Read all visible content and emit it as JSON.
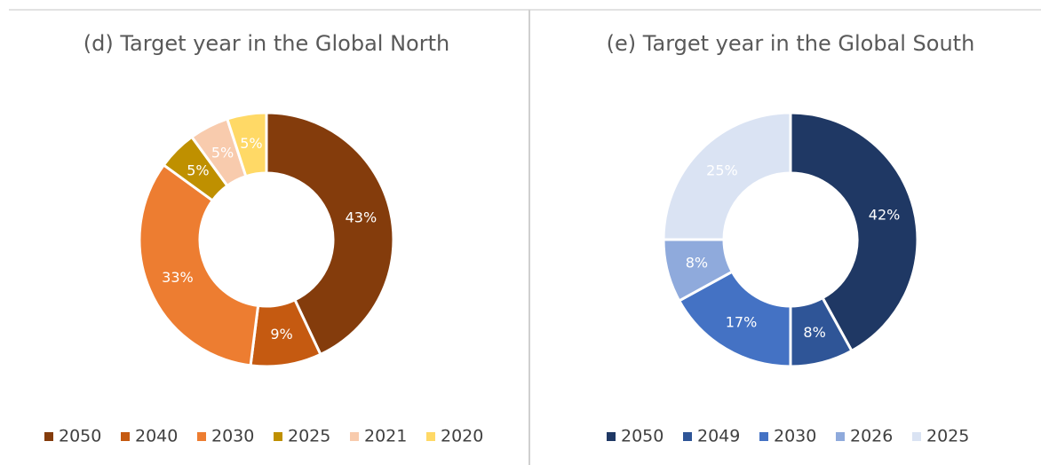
{
  "chart_data": [
    {
      "type": "donut",
      "title": "(d) Target year in the Global North",
      "categories": [
        "2050",
        "2040",
        "2030",
        "2025",
        "2021",
        "2020"
      ],
      "values": [
        43,
        9,
        33,
        5,
        5,
        5
      ],
      "value_labels": [
        "43%",
        "9%",
        "33%",
        "5%",
        "5%",
        "5%"
      ],
      "colors": [
        "#843C0C",
        "#C55A11",
        "#ED7D31",
        "#BF9000",
        "#F8CBAD",
        "#FFD966"
      ],
      "legend": "bottom"
    },
    {
      "type": "donut",
      "title": "(e) Target year in the Global South",
      "categories": [
        "2050",
        "2049",
        "2030",
        "2026",
        "2025"
      ],
      "values": [
        42,
        8,
        17,
        8,
        25
      ],
      "value_labels": [
        "42%",
        "8%",
        "17%",
        "8%",
        "25%"
      ],
      "colors": [
        "#1F3864",
        "#2F5597",
        "#4472C4",
        "#8FAADC",
        "#DAE3F3"
      ],
      "legend": "bottom"
    }
  ]
}
